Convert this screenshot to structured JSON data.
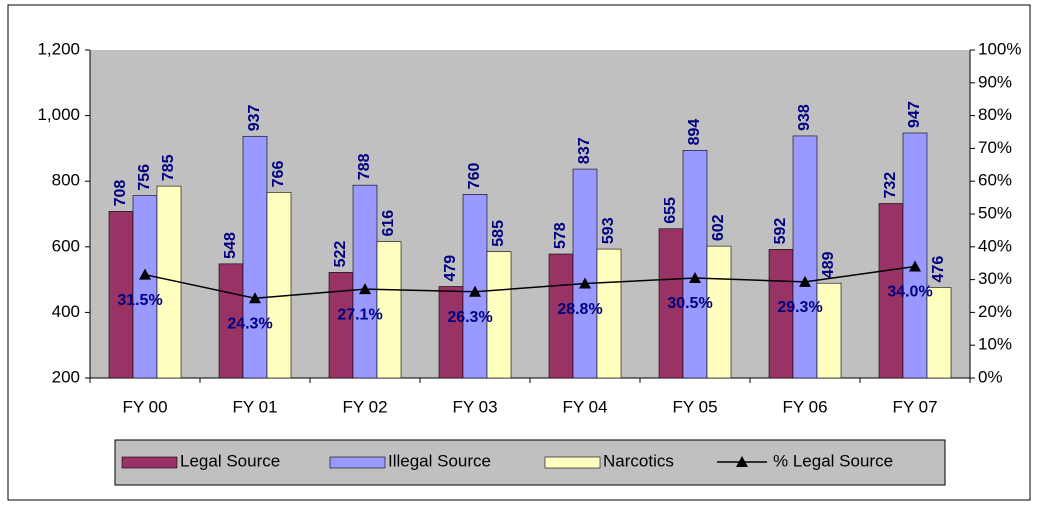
{
  "chart_data": {
    "type": "bar",
    "categories": [
      "FY 00",
      "FY 01",
      "FY 02",
      "FY 03",
      "FY 04",
      "FY 05",
      "FY 06",
      "FY 07"
    ],
    "series": [
      {
        "name": "Legal Source",
        "color": "#993366",
        "values": [
          708,
          548,
          522,
          479,
          578,
          655,
          592,
          732
        ]
      },
      {
        "name": "Illegal Source",
        "color": "#9999FF",
        "values": [
          756,
          937,
          788,
          760,
          837,
          894,
          938,
          947
        ]
      },
      {
        "name": "Narcotics",
        "color": "#FFFFC0",
        "values": [
          785,
          766,
          616,
          585,
          593,
          602,
          489,
          476
        ]
      },
      {
        "name": "% Legal Source",
        "color": "#000000",
        "type": "line",
        "axis": "y2",
        "values": [
          31.5,
          24.3,
          27.1,
          26.3,
          28.8,
          30.5,
          29.3,
          34.0
        ],
        "value_labels": [
          "31.5%",
          "24.3%",
          "27.1%",
          "26.3%",
          "28.8%",
          "30.5%",
          "29.3%",
          "34.0%"
        ]
      }
    ],
    "ylim": [
      200,
      1200
    ],
    "yticks": [
      200,
      400,
      600,
      800,
      {
        "value": 1000,
        "label": "1,000"
      },
      {
        "value": 1200,
        "label": "1,200"
      }
    ],
    "y2lim": [
      0,
      100
    ],
    "y2ticks": [
      {
        "value": 0,
        "label": "0%"
      },
      {
        "value": 10,
        "label": "10%"
      },
      {
        "value": 20,
        "label": "20%"
      },
      {
        "value": 30,
        "label": "30%"
      },
      {
        "value": 40,
        "label": "40%"
      },
      {
        "value": 50,
        "label": "50%"
      },
      {
        "value": 60,
        "label": "60%"
      },
      {
        "value": 70,
        "label": "70%"
      },
      {
        "value": 80,
        "label": "80%"
      },
      {
        "value": 90,
        "label": "90%"
      },
      {
        "value": 100,
        "label": "100%"
      }
    ],
    "plot_background": "#C0C0C0",
    "legend": "bottom"
  }
}
